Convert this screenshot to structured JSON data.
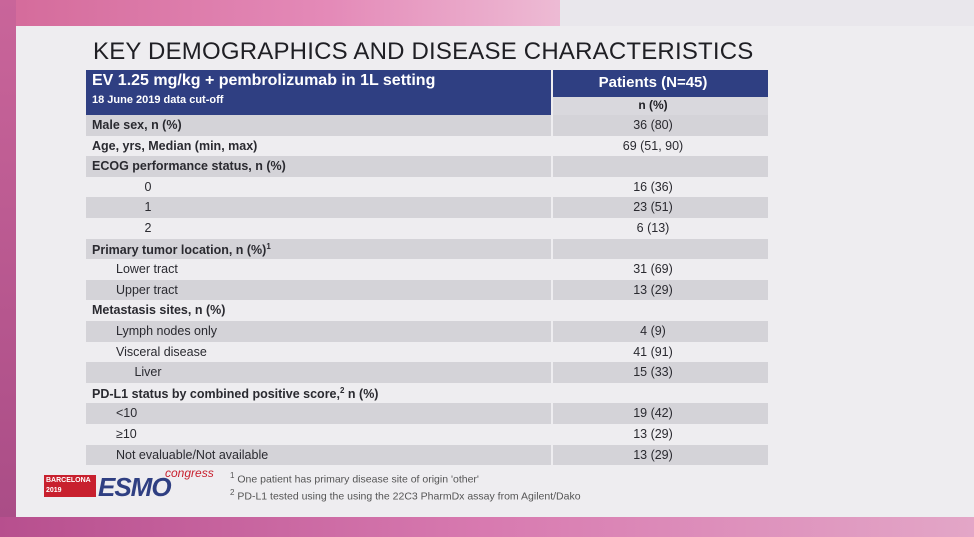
{
  "title": "KEY DEMOGRAPHICS AND DISEASE CHARACTERISTICS",
  "header": {
    "regimen": "EV 1.25 mg/kg + pembrolizumab in 1L setting",
    "cutoff": "18 June 2019 data cut-off",
    "patients": "Patients (N=45)",
    "unit": "n (%)"
  },
  "rows": [
    {
      "label": "Male sex, n (%)",
      "value": "36 (80)"
    },
    {
      "label": "Age, yrs, Median (min, max)",
      "value": "69 (51, 90)"
    },
    {
      "label": "ECOG performance status, n (%)",
      "value": ""
    },
    {
      "label": "0",
      "value": "16 (36)"
    },
    {
      "label": "1",
      "value": "23 (51)"
    },
    {
      "label": "2",
      "value": "6 (13)"
    },
    {
      "label": "Primary tumor location, n (%)",
      "sup": "1",
      "value": ""
    },
    {
      "label": "Lower tract",
      "value": "31 (69)"
    },
    {
      "label": "Upper tract",
      "value": "13 (29)"
    },
    {
      "label": "Metastasis sites, n (%)",
      "value": ""
    },
    {
      "label": "Lymph nodes only",
      "value": "4 (9)"
    },
    {
      "label": "Visceral disease",
      "value": "41 (91)"
    },
    {
      "label": "Liver",
      "value": "15 (33)"
    },
    {
      "label": "PD-L1 status by combined positive score,",
      "sup": "2",
      "label_tail": "n (%)",
      "value": ""
    },
    {
      "label": "<10",
      "value": "19 (42)"
    },
    {
      "label": "≥10",
      "value": "13 (29)"
    },
    {
      "label": "Not evaluable/Not available",
      "value": "13 (29)"
    }
  ],
  "footnotes": [
    {
      "mark": "1",
      "text": "One patient has primary disease site of origin 'other'"
    },
    {
      "mark": "2",
      "text": "PD-L1 tested using the using the 22C3 PharmDx assay from Agilent/Dako"
    }
  ],
  "logo": {
    "city_line1": "BARCELONA",
    "city_line2": "2019",
    "brand": "ESMO",
    "event": "congress"
  }
}
